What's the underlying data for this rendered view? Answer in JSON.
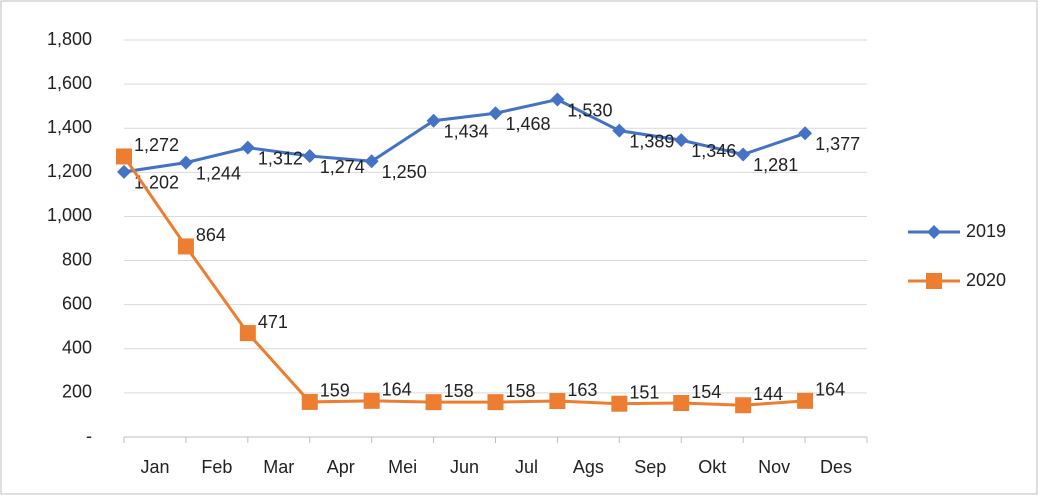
{
  "chart_data": {
    "type": "line",
    "categories": [
      "Jan",
      "Feb",
      "Mar",
      "Apr",
      "Mei",
      "Jun",
      "Jul",
      "Ags",
      "Sep",
      "Okt",
      "Nov",
      "Des"
    ],
    "series": [
      {
        "name": "2019",
        "color": "#4472c4",
        "marker": "diamond",
        "values": [
          1202,
          1244,
          1312,
          1274,
          1250,
          1434,
          1468,
          1530,
          1389,
          1346,
          1281,
          1377
        ],
        "value_labels": [
          "1,202",
          "1,244",
          "1,312",
          "1,274",
          "1,250",
          "1,434",
          "1,468",
          "1,530",
          "1,389",
          "1,346",
          "1,281",
          "1,377"
        ]
      },
      {
        "name": "2020",
        "color": "#ed7d31",
        "marker": "square",
        "values": [
          1272,
          864,
          471,
          159,
          164,
          158,
          158,
          163,
          151,
          154,
          144,
          164
        ],
        "value_labels": [
          "1,272",
          "864",
          "471",
          "159",
          "164",
          "158",
          "158",
          "163",
          "151",
          "154",
          "144",
          "164"
        ]
      }
    ],
    "ylim": [
      0,
      1800
    ],
    "yticks": [
      {
        "value": 0,
        "label": "-"
      },
      200,
      400,
      600,
      800,
      {
        "value": 1000,
        "label": "1,000"
      },
      {
        "value": 1200,
        "label": "1,200"
      },
      {
        "value": 1400,
        "label": "1,400"
      },
      {
        "value": 1600,
        "label": "1,600"
      },
      {
        "value": 1800,
        "label": "1,800"
      }
    ],
    "grid": true,
    "legend": "right"
  }
}
